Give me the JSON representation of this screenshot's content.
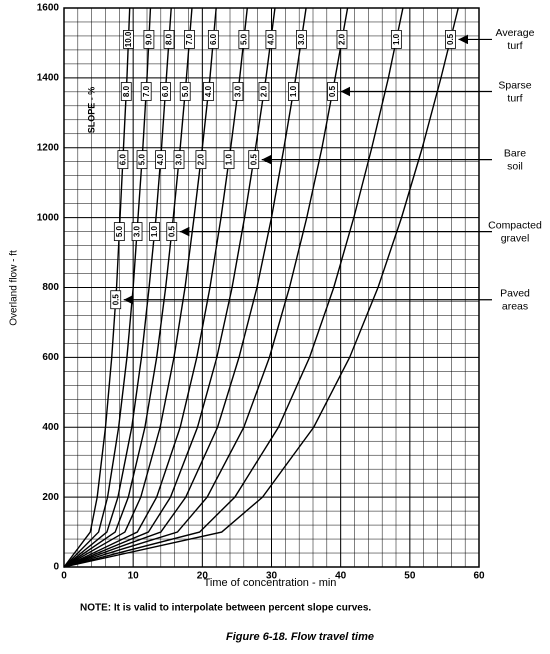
{
  "chart_data": {
    "type": "line",
    "xlabel": "Time of concentration - min",
    "ylabel": "Overland flow - ft",
    "slope_title": "SLOPE - %",
    "note": "NOTE:  It is valid to interpolate between percent slope curves.",
    "caption": "Figure 6-18.  Flow travel time",
    "xlim": [
      0,
      60
    ],
    "xticks": [
      0,
      10,
      20,
      30,
      40,
      50,
      60
    ],
    "ylim": [
      0,
      1600
    ],
    "yticks": [
      0,
      200,
      400,
      600,
      800,
      1000,
      1200,
      1400,
      1600
    ],
    "grid": true,
    "minor_step": [
      2,
      40
    ],
    "color": "#000000",
    "y": [
      0,
      100,
      200,
      400,
      600,
      800,
      1000,
      1200,
      1400,
      1600
    ],
    "series": [
      {
        "name": "0.5",
        "x": [
          0,
          22.8,
          28.7,
          36.1,
          41.3,
          45.4,
          48.8,
          51.8,
          54.5,
          57
        ]
      },
      {
        "name": "1.0",
        "x": [
          0,
          19.6,
          24.7,
          31.0,
          35.5,
          39.0,
          41.9,
          44.5,
          46.9,
          49
        ]
      },
      {
        "name": "2.0",
        "x": [
          0,
          16.4,
          20.7,
          26.0,
          29.7,
          32.6,
          35.1,
          37.3,
          39.2,
          41
        ]
      },
      {
        "name": "3.0",
        "x": [
          0,
          14,
          17.6,
          22.2,
          25.3,
          27.9,
          30,
          31.8,
          33.5,
          35
        ]
      },
      {
        "name": "4.0",
        "x": [
          0,
          12.2,
          15.4,
          19.3,
          22.1,
          24.3,
          26.1,
          27.7,
          29.2,
          30.5
        ]
      },
      {
        "name": "5.0",
        "x": [
          0,
          10.6,
          13.4,
          16.8,
          19.2,
          21.1,
          22.7,
          24.1,
          25.4,
          26.5
        ]
      },
      {
        "name": "6.0",
        "x": [
          0,
          8.8,
          11.1,
          13.9,
          15.9,
          17.5,
          18.8,
          20,
          21.1,
          22
        ]
      },
      {
        "name": "7.0",
        "x": [
          0,
          7.4,
          9.3,
          11.7,
          13.4,
          14.7,
          15.8,
          16.8,
          17.7,
          18.5
        ]
      },
      {
        "name": "8.0",
        "x": [
          0,
          6.2,
          7.8,
          9.8,
          11.2,
          12.3,
          13.3,
          14.1,
          14.8,
          15.5
        ]
      },
      {
        "name": "9.0",
        "x": [
          0,
          5,
          6.3,
          7.9,
          9.1,
          10,
          10.7,
          11.4,
          12,
          12.5
        ]
      },
      {
        "name": "10.0",
        "x": [
          0,
          3.8,
          4.8,
          6,
          6.9,
          7.6,
          8.1,
          8.6,
          9.1,
          9.5
        ]
      }
    ],
    "surfaces": [
      {
        "name": [
          "Average",
          "turf"
        ],
        "y": 1510
      },
      {
        "name": [
          "Sparse",
          "turf"
        ],
        "y": 1361,
        "slope_labels": [
          "8.0",
          "7.0",
          "6.0",
          "5.0",
          "4.0",
          "3.0",
          "2.0",
          "1.0",
          "0.5"
        ]
      },
      {
        "name": [
          "Bare",
          "soil"
        ],
        "y": 1166,
        "slope_labels": [
          "6.0",
          "5.0",
          "4.0",
          "3.0",
          "2.0",
          "1.0",
          "0.5"
        ]
      },
      {
        "name": [
          "Compacted",
          "gravel"
        ],
        "y": 960,
        "slope_labels": [
          "5.0",
          "3.0",
          "1.0",
          "0.5"
        ]
      },
      {
        "name": [
          "Paved",
          "areas"
        ],
        "y": 765,
        "slope_labels": [
          "0.5"
        ]
      }
    ]
  }
}
